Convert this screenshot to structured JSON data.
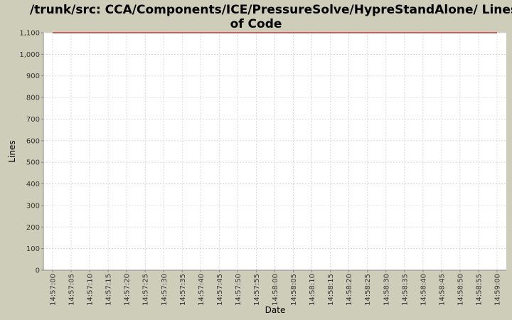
{
  "chart_data": {
    "type": "line",
    "title_lines": [
      "/trunk/src: CCA/Components/ICE/PressureSolve/HypreStandAlone/ Lines",
      "of Code"
    ],
    "xlabel": "Date",
    "ylabel": "Lines",
    "ylim": [
      0,
      1100
    ],
    "yticks": [
      0,
      100,
      200,
      300,
      400,
      500,
      600,
      700,
      800,
      900,
      1000,
      1100
    ],
    "ytick_labels": [
      "0",
      "100",
      "200",
      "300",
      "400",
      "500",
      "600",
      "700",
      "800",
      "900",
      "1,000",
      "1,100"
    ],
    "xtick_labels": [
      "14:57:00",
      "14:57:05",
      "14:57:10",
      "14:57:15",
      "14:57:20",
      "14:57:25",
      "14:57:30",
      "14:57:35",
      "14:57:40",
      "14:57:45",
      "14:57:50",
      "14:57:55",
      "14:58:00",
      "14:58:05",
      "14:58:10",
      "14:58:15",
      "14:58:20",
      "14:58:25",
      "14:58:30",
      "14:58:35",
      "14:58:40",
      "14:58:45",
      "14:58:50",
      "14:58:55",
      "14:59:00"
    ],
    "series": [
      {
        "x": [
          "14:57:00",
          "14:59:00"
        ],
        "values": [
          1100,
          1100
        ],
        "color": "#cc3333"
      }
    ],
    "grid": true,
    "colors": {
      "background": "#cdcdb9",
      "plot_background": "#ffffff",
      "grid": "#d4d4d4",
      "axis": "#888888"
    }
  }
}
